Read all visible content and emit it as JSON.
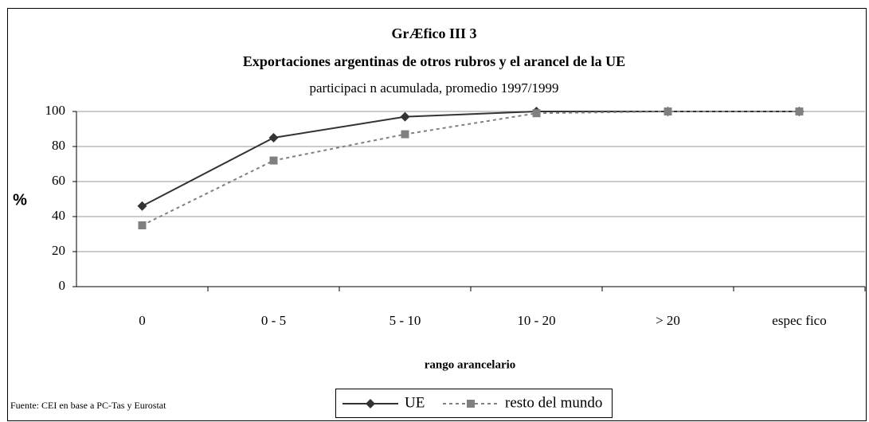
{
  "chart_data": {
    "type": "line",
    "title": "GrÆfico III 3",
    "subtitle": "Exportaciones argentinas de otros rubros y el arancel de la UE",
    "subtitle2": "participaci n acumulada, promedio 1997/1999",
    "y_label": "%",
    "x_label": "rango arancelario",
    "source": "Fuente: CEI en base a PC-Tas y Eurostat",
    "categories": [
      "0",
      "0 - 5",
      "5 - 10",
      "10 - 20",
      "> 20",
      "espec fico"
    ],
    "series": [
      {
        "name": "UE",
        "color": "#333333",
        "marker": "diamond",
        "dash": "solid",
        "values": [
          46,
          85,
          97,
          100,
          100,
          100
        ]
      },
      {
        "name": "resto del mundo",
        "color": "#808080",
        "marker": "square",
        "dash": "dotted",
        "values": [
          35,
          72,
          87,
          99,
          100,
          100
        ]
      }
    ],
    "ylim": [
      0,
      100
    ],
    "yticks": [
      0,
      20,
      40,
      60,
      80,
      100
    ],
    "grid": true
  }
}
